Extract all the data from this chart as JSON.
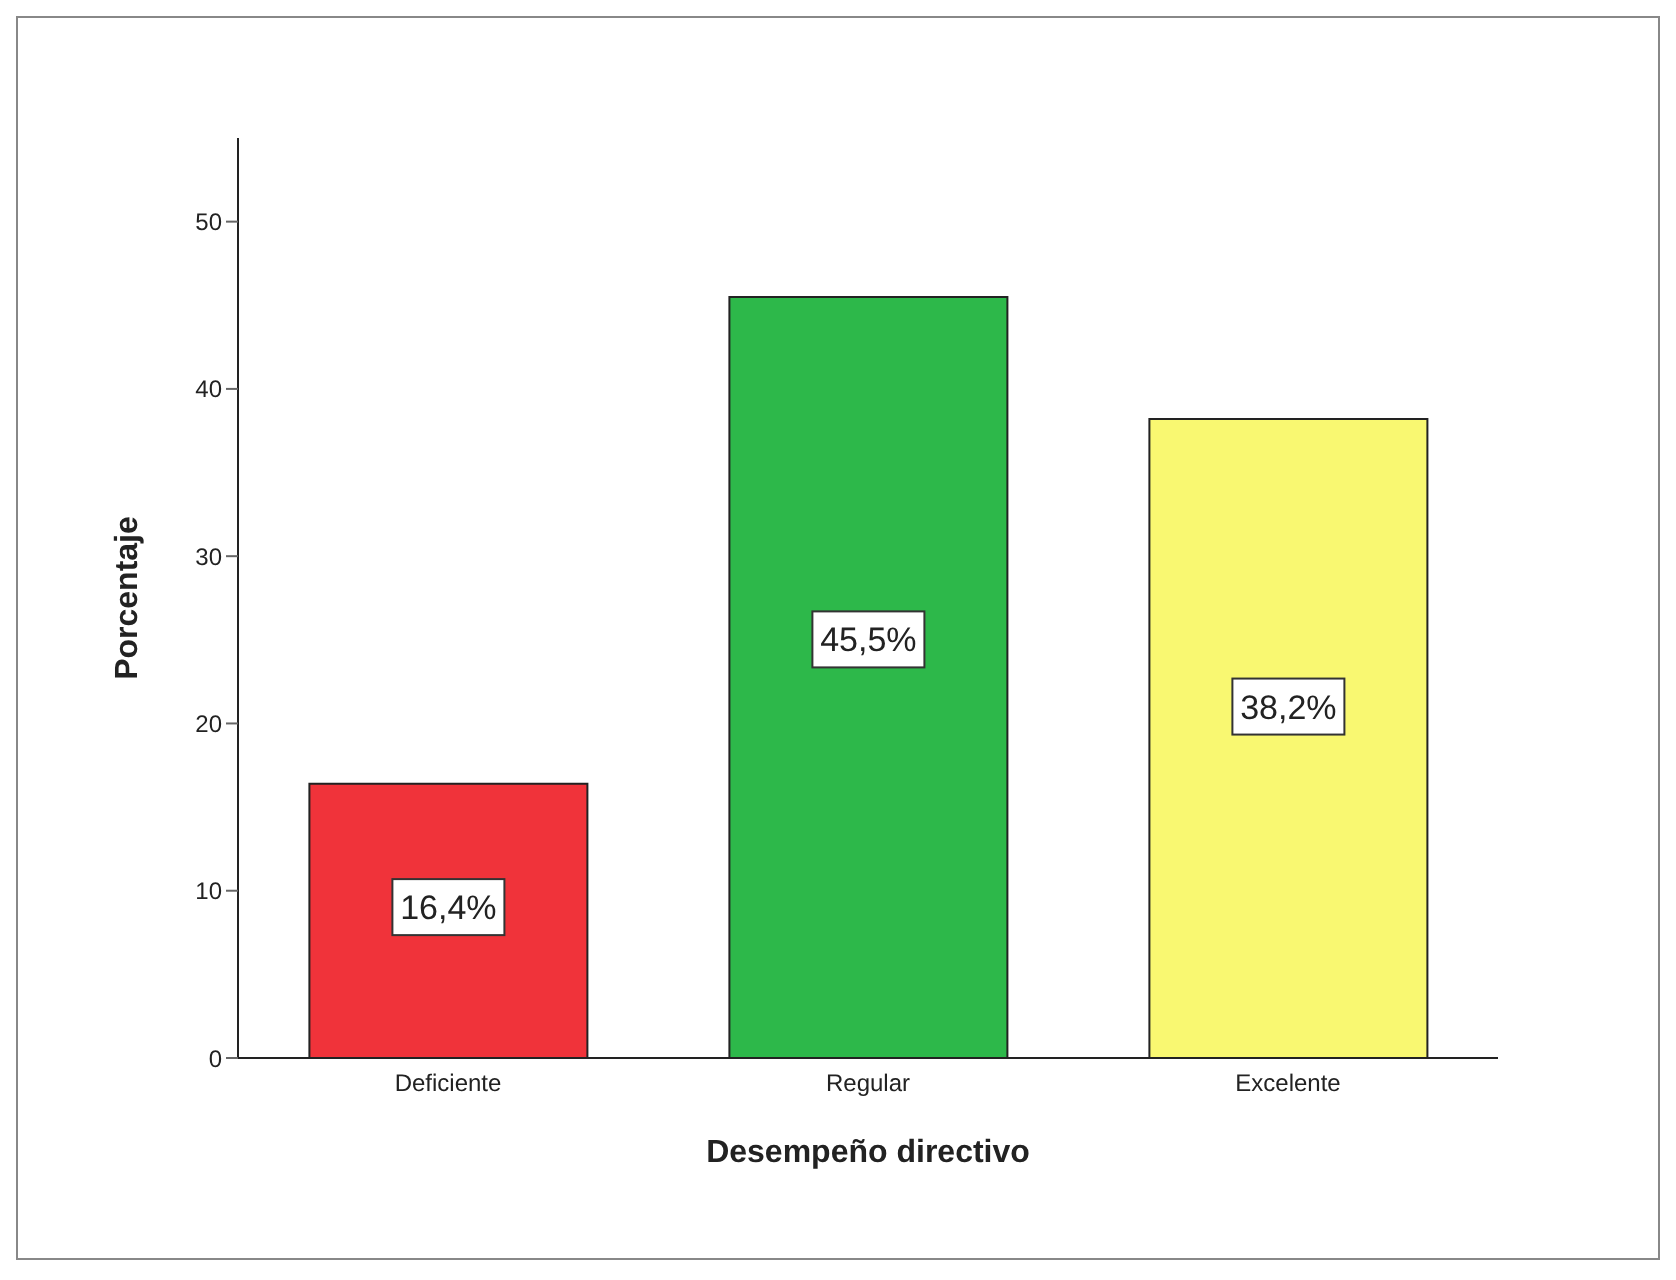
{
  "chart_data": {
    "type": "bar",
    "xlabel": "Desempeño directivo",
    "ylabel": "Porcentaje",
    "categories": [
      "Deficiente",
      "Regular",
      "Excelente"
    ],
    "values": [
      16.4,
      45.5,
      38.2
    ],
    "colors": [
      "#f0333a",
      "#2db84a",
      "#f9f871"
    ],
    "value_labels": [
      "16,4%",
      "45,5%",
      "38,2%"
    ],
    "ylim": [
      0,
      55
    ],
    "yticks": [
      0,
      10,
      20,
      30,
      40,
      50
    ],
    "grid": false,
    "legend": false
  }
}
